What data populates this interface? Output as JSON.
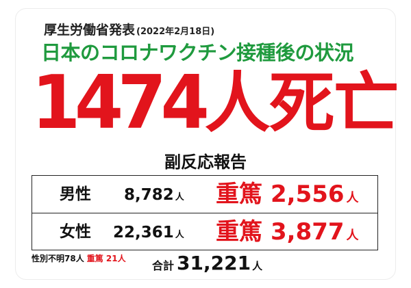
{
  "source": {
    "text": "厚生労働省発表",
    "date": "(2022年2月18日)"
  },
  "headline": "日本のコロナワクチン接種後の状況",
  "deaths": {
    "number": "1474",
    "label": "人死亡"
  },
  "section_title": "副反応報告",
  "rows": [
    {
      "sex": "男性",
      "count": "8,782",
      "unit": "人",
      "severe_label": "重篤",
      "severe_count": "2,556",
      "severe_unit": "人"
    },
    {
      "sex": "女性",
      "count": "22,361",
      "unit": "人",
      "severe_label": "重篤",
      "severe_count": "3,877",
      "severe_unit": "人"
    }
  ],
  "note": {
    "unknown": "性別不明78人",
    "unknown_severe": "重篤 21人"
  },
  "total": {
    "label": "合計",
    "value": "31,221",
    "unit": "人"
  },
  "colors": {
    "headline_green": "#1f9a3e",
    "alert_red": "#e2141c",
    "text_dark": "#111111"
  }
}
